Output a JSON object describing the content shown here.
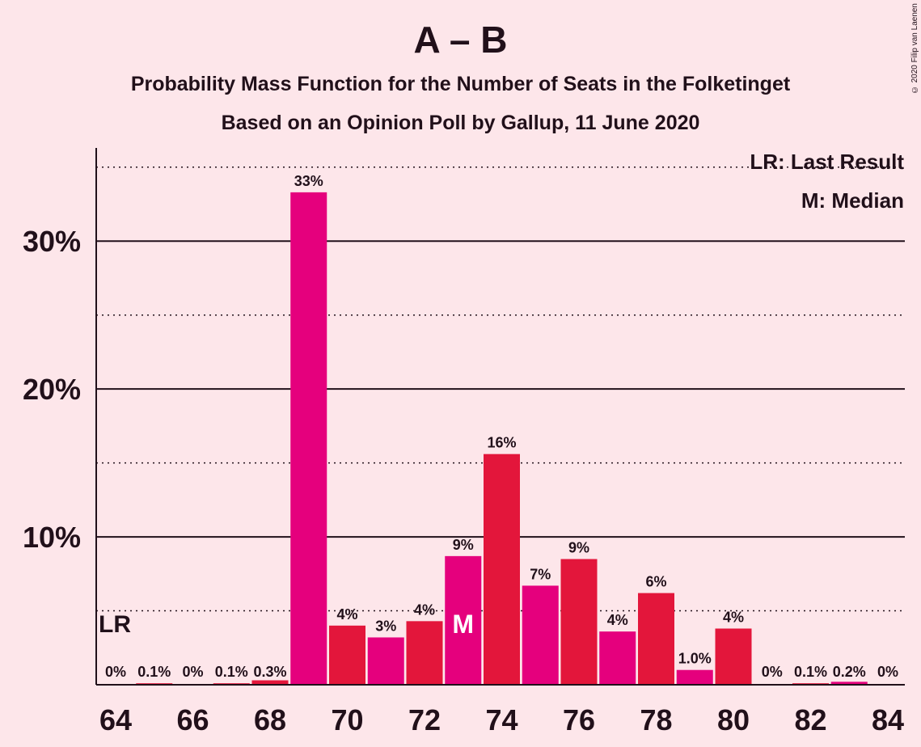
{
  "title": "A – B",
  "subtitle1": "Probability Mass Function for the Number of Seats in the Folketinget",
  "subtitle2": "Based on an Opinion Poll by Gallup, 11 June 2020",
  "copyright": "© 2020 Filip van Laenen",
  "legend": {
    "lr": "LR: Last Result",
    "median": "M: Median"
  },
  "colors": {
    "magenta": "#e5007d",
    "red": "#e3163b",
    "background": "#fde6ea",
    "text": "#21101a"
  },
  "chart_data": {
    "type": "bar",
    "x": [
      64,
      65,
      66,
      67,
      68,
      69,
      70,
      71,
      72,
      73,
      74,
      75,
      76,
      77,
      78,
      79,
      80,
      81,
      82,
      83,
      84
    ],
    "values": [
      0,
      0.1,
      0,
      0.1,
      0.3,
      33.3,
      4.0,
      3.2,
      4.3,
      8.7,
      15.6,
      6.7,
      8.5,
      3.6,
      6.2,
      1.0,
      3.8,
      0,
      0.1,
      0.2,
      0
    ],
    "labels": [
      "0%",
      "0.1%",
      "0%",
      "0.1%",
      "0.3%",
      "33%",
      "4%",
      "3%",
      "4%",
      "9%",
      "16%",
      "7%",
      "9%",
      "4%",
      "6%",
      "1.0%",
      "4%",
      "0%",
      "0.1%",
      "0.2%",
      "0%"
    ],
    "bar_colors": [
      "magenta",
      "red",
      "magenta",
      "red",
      "red",
      "magenta",
      "red",
      "magenta",
      "red",
      "magenta",
      "red",
      "magenta",
      "red",
      "magenta",
      "red",
      "magenta",
      "red",
      "magenta",
      "red",
      "magenta",
      "red"
    ],
    "x_ticks": [
      64,
      66,
      68,
      70,
      72,
      74,
      76,
      78,
      80,
      82,
      84
    ],
    "y_ticks": [
      10,
      20,
      30
    ],
    "y_tick_labels": [
      "10%",
      "20%",
      "30%"
    ],
    "ylim": [
      0,
      36.3
    ],
    "last_result": 64,
    "last_result_label": "LR",
    "median": 73,
    "median_label": "M",
    "grid": true
  }
}
